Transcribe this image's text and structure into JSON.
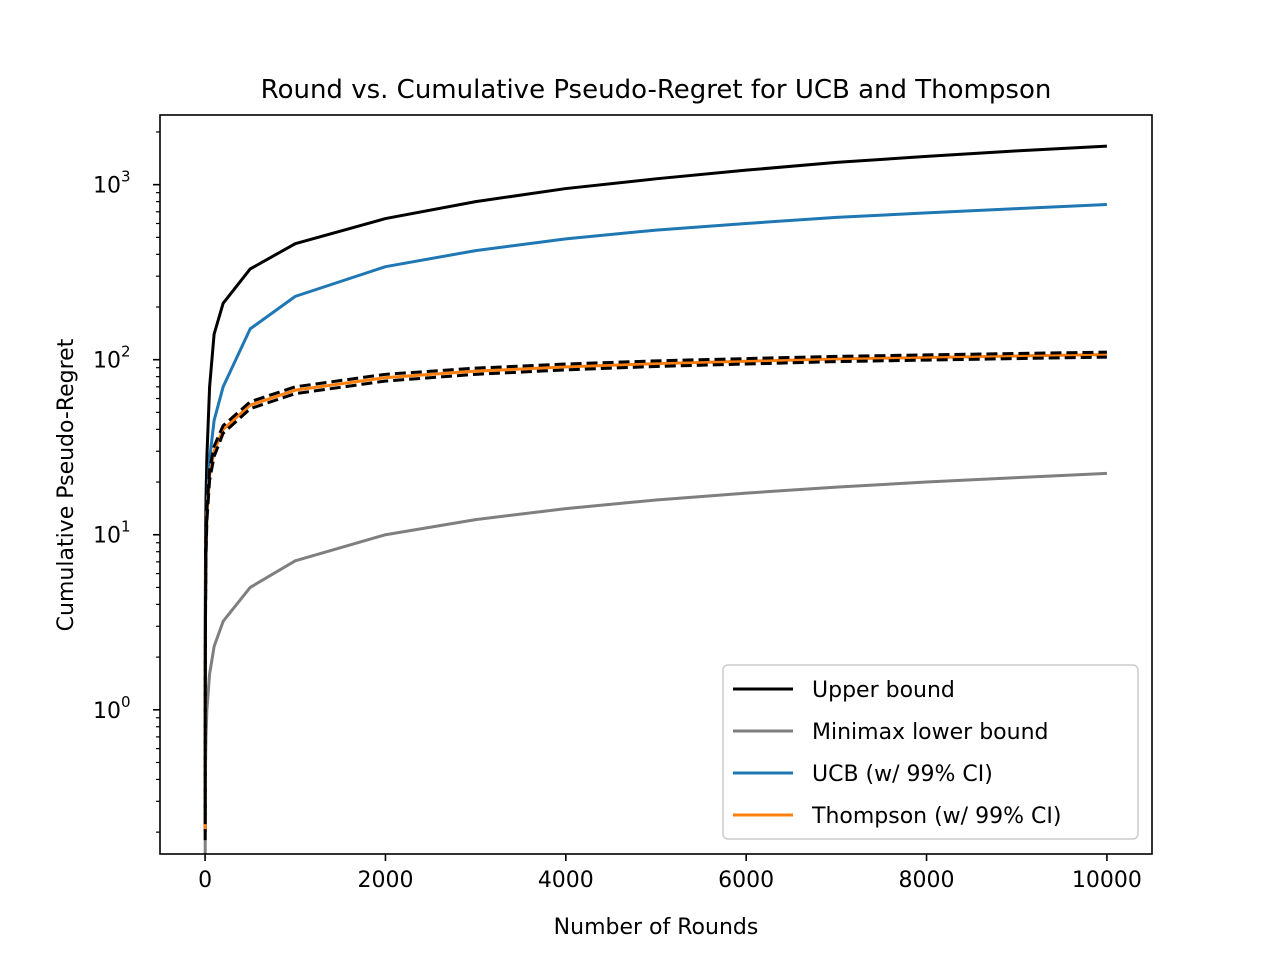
{
  "chart_data": {
    "type": "line",
    "title": "Round vs. Cumulative Pseudo-Regret for UCB and Thompson",
    "xlabel": "Number of Rounds",
    "ylabel": "Cumulative Pseudo-Regret",
    "xlim": [
      -500,
      10500
    ],
    "ylim": [
      0.15,
      2500
    ],
    "yscale": "log",
    "grid": false,
    "legend_position": "lower-right",
    "x_ticks": [
      {
        "value": 0,
        "label": "0"
      },
      {
        "value": 2000,
        "label": "2000"
      },
      {
        "value": 4000,
        "label": "4000"
      },
      {
        "value": 6000,
        "label": "6000"
      },
      {
        "value": 8000,
        "label": "8000"
      },
      {
        "value": 10000,
        "label": "10000"
      }
    ],
    "y_ticks": [
      {
        "value": 1,
        "base": "10",
        "exp": "0"
      },
      {
        "value": 10,
        "base": "10",
        "exp": "1"
      },
      {
        "value": 100,
        "base": "10",
        "exp": "2"
      },
      {
        "value": 1000,
        "base": "10",
        "exp": "3"
      }
    ],
    "series": [
      {
        "name": "Upper bound",
        "color": "#000000",
        "style": "solid",
        "x": [
          1,
          2,
          5,
          10,
          20,
          50,
          100,
          200,
          500,
          1000,
          2000,
          3000,
          4000,
          5000,
          6000,
          7000,
          8000,
          9000,
          10000
        ],
        "y": [
          0.2,
          3,
          9,
          16,
          28,
          70,
          140,
          210,
          330,
          460,
          640,
          800,
          950,
          1080,
          1210,
          1340,
          1450,
          1560,
          1660
        ]
      },
      {
        "name": "Minimax lower bound",
        "color": "#7f7f7f",
        "style": "solid",
        "x": [
          1,
          2,
          5,
          10,
          20,
          50,
          100,
          200,
          500,
          1000,
          2000,
          3000,
          4000,
          5000,
          6000,
          7000,
          8000,
          9000,
          10000
        ],
        "y": [
          0.15,
          0.3,
          0.5,
          0.7,
          1.0,
          1.6,
          2.3,
          3.2,
          5.0,
          7.1,
          10.0,
          12.2,
          14.1,
          15.8,
          17.3,
          18.7,
          20.0,
          21.2,
          22.4
        ]
      },
      {
        "name": "UCB (w/ 99% CI)",
        "color": "#1f77b4",
        "style": "solid",
        "x": [
          1,
          2,
          5,
          10,
          20,
          50,
          100,
          200,
          500,
          1000,
          2000,
          3000,
          4000,
          5000,
          6000,
          7000,
          8000,
          9000,
          10000
        ],
        "y": [
          0.2,
          1.5,
          4,
          8,
          14,
          27,
          45,
          70,
          150,
          230,
          340,
          420,
          490,
          550,
          600,
          650,
          690,
          730,
          770
        ]
      },
      {
        "name": "Thompson (w/ 99% CI)",
        "color": "#ff7f0e",
        "style": "solid",
        "x": [
          1,
          2,
          5,
          10,
          20,
          50,
          100,
          200,
          500,
          1000,
          2000,
          3000,
          4000,
          5000,
          6000,
          7000,
          8000,
          9000,
          10000
        ],
        "y": [
          0.2,
          1.5,
          4,
          8,
          13,
          22,
          30,
          40,
          55,
          67,
          79,
          86,
          91,
          95,
          98,
          101,
          103,
          105,
          107
        ]
      },
      {
        "name": "",
        "color": "#000000",
        "style": "dashed",
        "x": [
          1,
          2,
          5,
          10,
          20,
          50,
          100,
          200,
          500,
          1000,
          2000,
          3000,
          4000,
          5000,
          6000,
          7000,
          8000,
          9000,
          10000
        ],
        "y": [
          0.25,
          1.6,
          4.3,
          8.5,
          14,
          23.5,
          32,
          42,
          57.5,
          70,
          82.5,
          89.5,
          94.5,
          98.5,
          101.5,
          104.5,
          106.5,
          108.5,
          110.5
        ]
      },
      {
        "name": "",
        "color": "#000000",
        "style": "dashed",
        "x": [
          1,
          2,
          5,
          10,
          20,
          50,
          100,
          200,
          500,
          1000,
          2000,
          3000,
          4000,
          5000,
          6000,
          7000,
          8000,
          9000,
          10000
        ],
        "y": [
          0.18,
          1.4,
          3.7,
          7.5,
          12,
          20.5,
          28,
          38,
          52.5,
          64,
          75.5,
          82.5,
          87.5,
          91.5,
          94.5,
          97.5,
          99.5,
          101.5,
          103.5
        ]
      }
    ]
  }
}
